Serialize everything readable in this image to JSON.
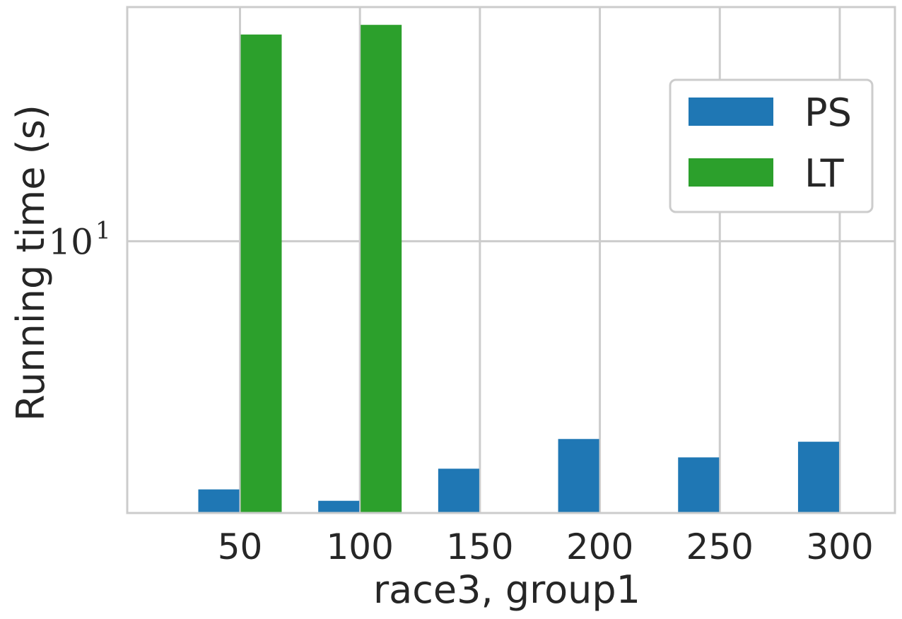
{
  "chart_data": {
    "type": "bar",
    "title": "",
    "xlabel": "race3, group1",
    "ylabel": "Running time (s)",
    "yscale": "log",
    "ylim": [
      2.0,
      40.0
    ],
    "y_ticks": [
      {
        "value": 10,
        "base": "10",
        "exponent": "1"
      }
    ],
    "x_ticks": [
      "50",
      "100",
      "150",
      "200",
      "250",
      "300"
    ],
    "x_values": [
      50,
      100,
      150,
      200,
      250,
      300
    ],
    "xlim": [
      3,
      323
    ],
    "grid": true,
    "legend_position": "top-right",
    "series": [
      {
        "name": "PS",
        "color": "#1f77b4",
        "values": [
          2.3,
          2.15,
          2.6,
          3.1,
          2.78,
          3.05
        ]
      },
      {
        "name": "LT",
        "color": "#2ca02c",
        "values": [
          34.0,
          36.0,
          null,
          null,
          null,
          null
        ]
      }
    ]
  }
}
